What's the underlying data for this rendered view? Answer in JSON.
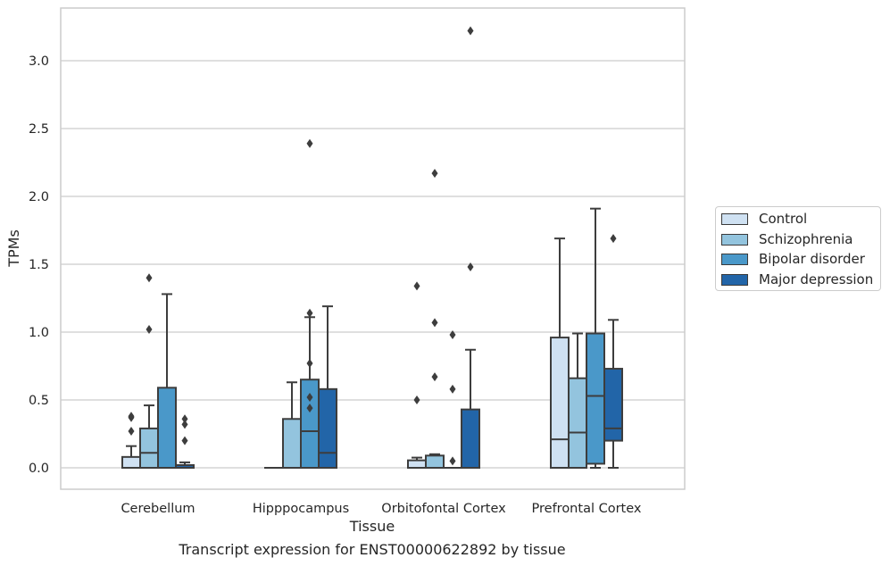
{
  "chart_data": {
    "type": "box",
    "title": "",
    "xlabel": "Tissue",
    "ylabel": "TPMs",
    "ylim": [
      -0.155,
      3.39
    ],
    "yticks": [
      "0.0",
      "0.5",
      "1.0",
      "1.5",
      "2.0",
      "2.5",
      "3.0"
    ],
    "grid": true,
    "legend_position": "outside-right",
    "categories": [
      "Cerebellum",
      "Hipppocampus",
      "Orbitofontal Cortex",
      "Prefrontal Cortex"
    ],
    "series": [
      {
        "name": "Control",
        "color": "#cfe1f2",
        "boxes": [
          {
            "whislo": 0.0,
            "q1": 0.0,
            "med": 0.0,
            "q3": 0.08,
            "whishi": 0.16,
            "fliers": [
              0.27,
              0.37,
              0.38
            ]
          },
          {
            "whislo": 0.0,
            "q1": 0.0,
            "med": 0.0,
            "q3": 0.0,
            "whishi": 0.0,
            "fliers": []
          },
          {
            "whislo": 0.0,
            "q1": 0.0,
            "med": 0.0,
            "q3": 0.055,
            "whishi": 0.075,
            "fliers": [
              0.5,
              1.34
            ]
          },
          {
            "whislo": 0.0,
            "q1": 0.0,
            "med": 0.21,
            "q3": 0.96,
            "whishi": 1.69,
            "fliers": []
          }
        ]
      },
      {
        "name": "Schizophrenia",
        "color": "#93c4de",
        "boxes": [
          {
            "whislo": 0.0,
            "q1": 0.0,
            "med": 0.11,
            "q3": 0.29,
            "whishi": 0.46,
            "fliers": [
              1.02,
              1.4
            ]
          },
          {
            "whislo": 0.0,
            "q1": 0.0,
            "med": 0.0,
            "q3": 0.36,
            "whishi": 0.63,
            "fliers": []
          },
          {
            "whislo": 0.0,
            "q1": 0.0,
            "med": 0.0,
            "q3": 0.09,
            "whishi": 0.1,
            "fliers": [
              0.67,
              1.07,
              2.17
            ]
          },
          {
            "whislo": 0.0,
            "q1": 0.0,
            "med": 0.26,
            "q3": 0.66,
            "whishi": 0.99,
            "fliers": []
          }
        ]
      },
      {
        "name": "Bipolar disorder",
        "color": "#4a98c9",
        "boxes": [
          {
            "whislo": 0.0,
            "q1": 0.0,
            "med": 0.0,
            "q3": 0.59,
            "whishi": 1.28,
            "fliers": []
          },
          {
            "whislo": 0.0,
            "q1": 0.0,
            "med": 0.27,
            "q3": 0.65,
            "whishi": 1.11,
            "fliers": [
              0.44,
              0.52,
              0.77,
              1.14,
              2.39
            ]
          },
          {
            "whislo": 0.0,
            "q1": 0.0,
            "med": 0.0,
            "q3": 0.0,
            "whishi": 0.0,
            "fliers": [
              0.05,
              0.58,
              0.98
            ]
          },
          {
            "whislo": 0.0,
            "q1": 0.03,
            "med": 0.53,
            "q3": 0.99,
            "whishi": 1.91,
            "fliers": []
          }
        ]
      },
      {
        "name": "Major depression",
        "color": "#2265a8",
        "boxes": [
          {
            "whislo": 0.0,
            "q1": 0.0,
            "med": 0.0,
            "q3": 0.02,
            "whishi": 0.04,
            "fliers": [
              0.2,
              0.32,
              0.36
            ]
          },
          {
            "whislo": 0.0,
            "q1": 0.0,
            "med": 0.11,
            "q3": 0.58,
            "whishi": 1.19,
            "fliers": []
          },
          {
            "whislo": 0.0,
            "q1": 0.0,
            "med": 0.0,
            "q3": 0.43,
            "whishi": 0.87,
            "fliers": [
              1.48,
              3.22
            ]
          },
          {
            "whislo": 0.0,
            "q1": 0.2,
            "med": 0.29,
            "q3": 0.73,
            "whishi": 1.09,
            "fliers": [
              1.69
            ]
          }
        ]
      }
    ]
  },
  "caption": "Transcript expression for ENST00000622892 by tissue"
}
